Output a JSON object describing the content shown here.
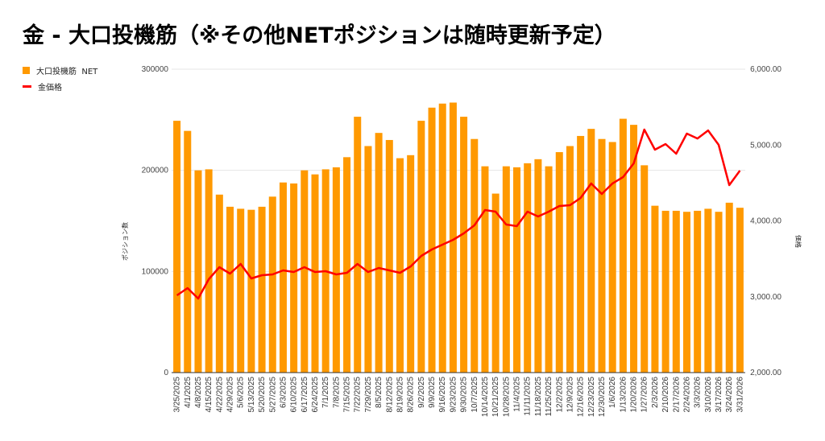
{
  "title": "金 - 大口投機筋（※その他NETポジションは随時更新予定）",
  "chart_data": {
    "type": "bar+line",
    "title": "金 - 大口投機筋（※その他NETポジションは随時更新予定）",
    "xlabel": "",
    "ylabel_left": "ポジション数",
    "ylabel_right": "価格",
    "ylim_left": [
      0,
      300000
    ],
    "ylim_right": [
      2000,
      6000
    ],
    "yticks_left": [
      "0",
      "100000",
      "200000",
      "300000"
    ],
    "yticks_right": [
      "2,000.00",
      "3,000.00",
      "4,000.00",
      "5,000.00",
      "6,000.00"
    ],
    "legend_position": "top-left",
    "grid": false,
    "categories": [
      "3/25/2025",
      "4/1/2025",
      "4/8/2025",
      "4/15/2025",
      "4/22/2025",
      "4/29/2025",
      "5/6/2025",
      "5/13/2025",
      "5/20/2025",
      "5/27/2025",
      "6/3/2025",
      "6/10/2025",
      "6/17/2025",
      "6/24/2025",
      "7/1/2025",
      "7/8/2025",
      "7/15/2025",
      "7/22/2025",
      "7/29/2025",
      "8/5/2025",
      "8/12/2025",
      "8/19/2025",
      "8/26/2025",
      "9/2/2025",
      "9/9/2025",
      "9/16/2025",
      "9/23/2025",
      "9/30/2025",
      "10/7/2025",
      "10/14/2025",
      "10/21/2025",
      "10/28/2025",
      "11/4/2025",
      "11/11/2025",
      "11/18/2025",
      "11/25/2025",
      "12/2/2025",
      "12/9/2025",
      "12/16/2025",
      "12/23/2025",
      "12/30/2025",
      "1/6/2026",
      "1/13/2026",
      "1/20/2026",
      "1/27/2026",
      "2/3/2026",
      "2/10/2026",
      "2/17/2026",
      "2/24/2026",
      "3/3/2026",
      "3/10/2026",
      "3/17/2026",
      "3/24/2026",
      "3/31/2026"
    ],
    "series": [
      {
        "name": "大口投機筋  NET",
        "type": "bar",
        "axis": "left",
        "color": "#ff9900",
        "values": [
          249000,
          239000,
          200000,
          201000,
          176000,
          164000,
          162000,
          161000,
          164000,
          174000,
          188000,
          187000,
          200000,
          196000,
          201000,
          203000,
          213000,
          253000,
          224000,
          237000,
          230000,
          212000,
          215000,
          249000,
          262000,
          266000,
          267000,
          253000,
          231000,
          204000,
          177000,
          204000,
          203000,
          207000,
          211000,
          204000,
          218000,
          224000,
          234000,
          241000,
          231000,
          228000,
          251000,
          245000,
          205000,
          165000,
          160000,
          160000,
          159000,
          160000,
          162000,
          159000,
          168000,
          163000
        ]
      },
      {
        "name": "金価格",
        "type": "line",
        "axis": "right",
        "color": "#ff0000",
        "values": [
          3019,
          3114,
          2976,
          3231,
          3390,
          3305,
          3432,
          3241,
          3284,
          3294,
          3347,
          3326,
          3390,
          3326,
          3337,
          3294,
          3316,
          3432,
          3326,
          3379,
          3347,
          3316,
          3400,
          3538,
          3623,
          3687,
          3751,
          3836,
          3942,
          4143,
          4122,
          3952,
          3931,
          4122,
          4058,
          4122,
          4196,
          4207,
          4302,
          4493,
          4355,
          4493,
          4578,
          4759,
          5204,
          4939,
          5013,
          4886,
          5151,
          5087,
          5193,
          5003,
          4472,
          4663
        ]
      }
    ]
  }
}
